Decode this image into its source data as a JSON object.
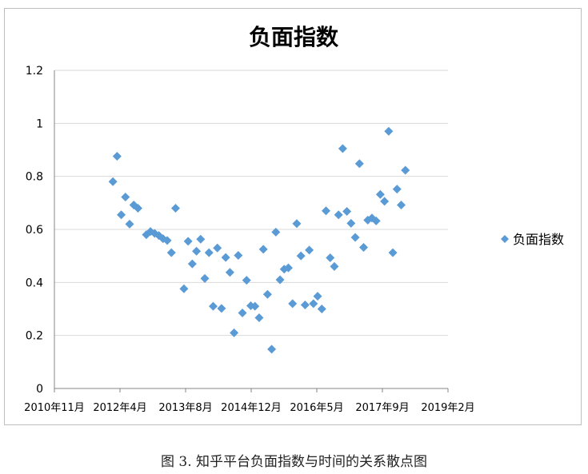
{
  "chart_data": {
    "type": "scatter",
    "title": "负面指数",
    "xlabel": "",
    "ylabel": "",
    "x_tick_labels": [
      "2010年11月",
      "2012年4月",
      "2013年8月",
      "2014年12月",
      "2016年5月",
      "2017年9月",
      "2019年2月"
    ],
    "y_tick_labels": [
      "0",
      "0.2",
      "0.4",
      "0.6",
      "0.8",
      "1",
      "1.2"
    ],
    "ylim": [
      0,
      1.2
    ],
    "grid": true,
    "legend_position": "right",
    "marker_color": "#5b9bd5",
    "series": [
      {
        "name": "负面指数",
        "points": [
          [
            "2012-01",
            0.78
          ],
          [
            "2012-02",
            0.876
          ],
          [
            "2012-03",
            0.655
          ],
          [
            "2012-04",
            0.722
          ],
          [
            "2012-05",
            0.62
          ],
          [
            "2012-06",
            0.692
          ],
          [
            "2012-07",
            0.68
          ],
          [
            "2012-09",
            0.58
          ],
          [
            "2012-10",
            0.592
          ],
          [
            "2012-11",
            0.585
          ],
          [
            "2012-12",
            0.577
          ],
          [
            "2013-01",
            0.565
          ],
          [
            "2013-02",
            0.558
          ],
          [
            "2013-03",
            0.512
          ],
          [
            "2013-04",
            0.68
          ],
          [
            "2013-06",
            0.376
          ],
          [
            "2013-07",
            0.555
          ],
          [
            "2013-08",
            0.47
          ],
          [
            "2013-09",
            0.518
          ],
          [
            "2013-10",
            0.563
          ],
          [
            "2013-11",
            0.415
          ],
          [
            "2013-12",
            0.512
          ],
          [
            "2014-01",
            0.31
          ],
          [
            "2014-02",
            0.53
          ],
          [
            "2014-03",
            0.302
          ],
          [
            "2014-04",
            0.494
          ],
          [
            "2014-05",
            0.438
          ],
          [
            "2014-06",
            0.21
          ],
          [
            "2014-07",
            0.502
          ],
          [
            "2014-08",
            0.285
          ],
          [
            "2014-09",
            0.408
          ],
          [
            "2014-10",
            0.312
          ],
          [
            "2014-11",
            0.31
          ],
          [
            "2014-12",
            0.267
          ],
          [
            "2015-01",
            0.525
          ],
          [
            "2015-02",
            0.355
          ],
          [
            "2015-03",
            0.148
          ],
          [
            "2015-04",
            0.59
          ],
          [
            "2015-05",
            0.41
          ],
          [
            "2015-06",
            0.45
          ],
          [
            "2015-07",
            0.455
          ],
          [
            "2015-08",
            0.32
          ],
          [
            "2015-09",
            0.622
          ],
          [
            "2015-10",
            0.5
          ],
          [
            "2015-11",
            0.315
          ],
          [
            "2015-12",
            0.522
          ],
          [
            "2016-01",
            0.32
          ],
          [
            "2016-02",
            0.348
          ],
          [
            "2016-03",
            0.3
          ],
          [
            "2016-04",
            0.67
          ],
          [
            "2016-05",
            0.493
          ],
          [
            "2016-06",
            0.46
          ],
          [
            "2016-07",
            0.655
          ],
          [
            "2016-08",
            0.905
          ],
          [
            "2016-09",
            0.668
          ],
          [
            "2016-10",
            0.623
          ],
          [
            "2016-11",
            0.57
          ],
          [
            "2016-12",
            0.848
          ],
          [
            "2017-01",
            0.532
          ],
          [
            "2017-02",
            0.635
          ],
          [
            "2017-03",
            0.643
          ],
          [
            "2017-04",
            0.632
          ],
          [
            "2017-05",
            0.732
          ],
          [
            "2017-06",
            0.706
          ],
          [
            "2017-07",
            0.97
          ],
          [
            "2017-08",
            0.512
          ],
          [
            "2017-09",
            0.752
          ],
          [
            "2017-10",
            0.692
          ],
          [
            "2017-11",
            0.823
          ]
        ]
      }
    ]
  },
  "caption": "图 3.  知乎平台负面指数与时间的关系散点图"
}
